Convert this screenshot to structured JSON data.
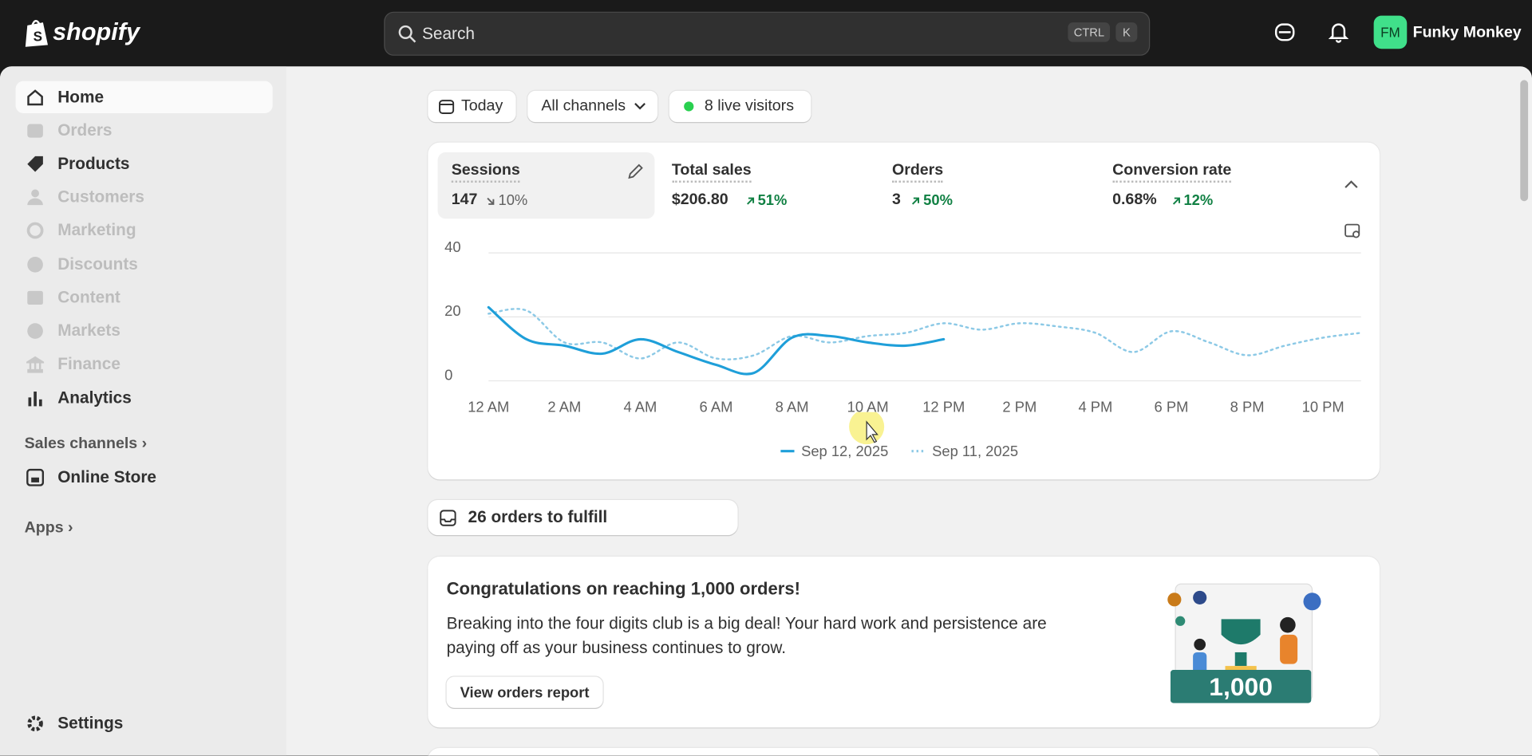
{
  "topbar": {
    "brand": "shopify",
    "search": "Search",
    "shortcut": [
      "CTRL",
      "K"
    ],
    "avatar": "FM",
    "store": "Funky Monkey"
  },
  "sidebar": {
    "items": [
      "Home",
      "Orders",
      "Products",
      "Customers",
      "Marketing",
      "Discounts",
      "Content",
      "Markets",
      "Finance",
      "Analytics"
    ],
    "sales_channels": "Sales channels",
    "online_store": "Online Store",
    "apps": "Apps",
    "settings": "Settings"
  },
  "filters": [
    "Today",
    "All channels",
    "8 live visitors"
  ],
  "metrics": [
    {
      "label": "Sessions",
      "value": "147",
      "change": "10%"
    },
    {
      "label": "Total sales",
      "value": "$206.80",
      "change": "51%"
    },
    {
      "label": "Orders",
      "value": "3",
      "change": "50%"
    },
    {
      "label": "Conversion rate",
      "value": "0.68%",
      "change": "12%"
    }
  ],
  "chart_data": {
    "type": "line",
    "x": [
      0,
      1,
      2,
      3,
      4,
      5,
      6,
      7,
      8,
      9,
      10,
      11,
      12,
      13,
      14,
      15,
      16,
      17,
      18,
      19,
      20,
      21,
      22,
      23
    ],
    "xlim": [
      0,
      23
    ],
    "xticks": [
      {
        "value": 0,
        "label": "12 AM"
      },
      {
        "value": 2,
        "label": "2 AM"
      },
      {
        "value": 4,
        "label": "4 AM"
      },
      {
        "value": 6,
        "label": "6 AM"
      },
      {
        "value": 8,
        "label": "8 AM"
      },
      {
        "value": 10,
        "label": "10 AM"
      },
      {
        "value": 12,
        "label": "12 PM"
      },
      {
        "value": 14,
        "label": "2 PM"
      },
      {
        "value": 16,
        "label": "4 PM"
      },
      {
        "value": 18,
        "label": "6 PM"
      },
      {
        "value": 20,
        "label": "8 PM"
      },
      {
        "value": 22,
        "label": "10 PM"
      }
    ],
    "ylim": [
      0,
      40
    ],
    "yticks": [
      0,
      20,
      40
    ],
    "grid": true,
    "series": [
      {
        "name": "Sep 12, 2025",
        "color": "#1f9fd9",
        "style": "solid",
        "values": [
          23,
          13,
          11,
          8.5,
          13,
          9,
          5,
          2.5,
          13.5,
          14,
          12,
          11,
          13,
          null,
          null,
          null,
          null,
          null,
          null,
          null,
          null,
          null,
          null,
          null
        ]
      },
      {
        "name": "Sep 11, 2025",
        "color": "#8cc9e6",
        "style": "dotted",
        "values": [
          21,
          22,
          12,
          12,
          7,
          12,
          7,
          8,
          14,
          12,
          14,
          15,
          18,
          16,
          18,
          17,
          15,
          9,
          15.5,
          12,
          8,
          11,
          13.5,
          15
        ]
      }
    ]
  },
  "fulfill": "26 orders to fulfill",
  "promo": {
    "title": "Congratulations on reaching 1,000 orders!",
    "body": "Breaking into the four digits club is a big deal! Your hard work and persistence are paying off as your business continues to grow.",
    "button": "View orders report",
    "badge": "1,000"
  }
}
